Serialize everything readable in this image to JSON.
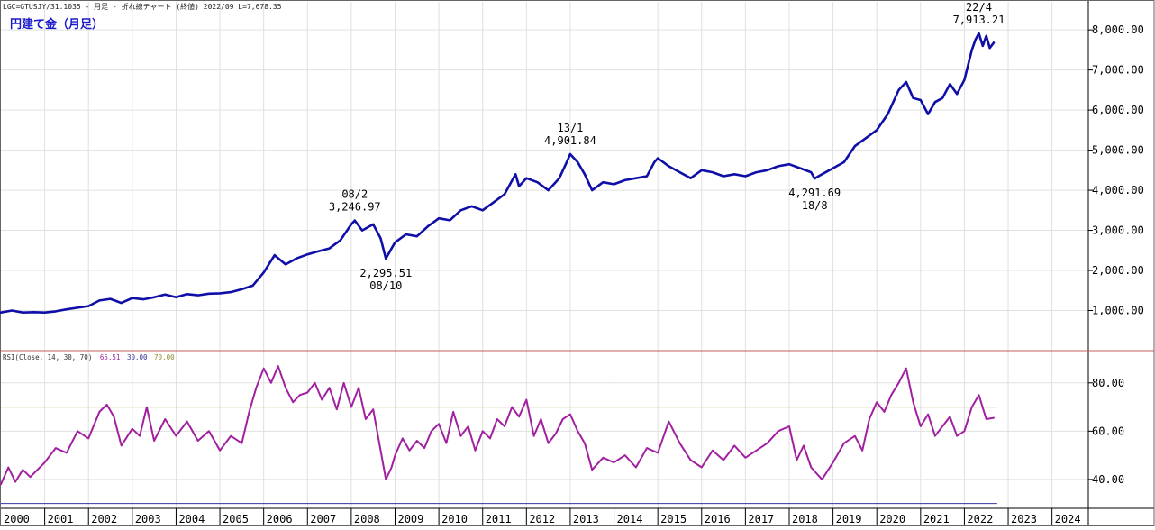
{
  "header": {
    "info_line": "LGC=GTUSJY/31.1035 - 月足 - 折れ線チャート (終値) 2022/09 L=7,678.35",
    "title": "円建て金（月足）"
  },
  "rsi_panel": {
    "label_prefix": "RSI(Close, 14, 30, 70)",
    "label_v1": "65.51",
    "label_v2": "30.00",
    "label_v3": "70.00"
  },
  "colors": {
    "price_line": "#0f0fa8",
    "rsi_line": "#a020a0",
    "level70_line": "#8c8c30",
    "level30_line": "#3535a0",
    "separator": "#c06060",
    "grid": "#e0e0e0",
    "title": "#1a1acc"
  },
  "chart_data": [
    {
      "type": "line",
      "name": "price",
      "y_tick_labels": [
        "1,000.00",
        "2,000.00",
        "3,000.00",
        "4,000.00",
        "5,000.00",
        "6,000.00",
        "7,000.00",
        "8,000.00"
      ],
      "y_ticks": [
        1000,
        2000,
        3000,
        4000,
        5000,
        6000,
        7000,
        8000
      ],
      "ylim": [
        0,
        8700
      ],
      "x_axis_labels": [
        "2000",
        "2001",
        "2002",
        "2003",
        "2004",
        "2005",
        "2006",
        "2007",
        "2008",
        "2009",
        "2010",
        "2011",
        "2012",
        "2013",
        "2014",
        "2015",
        "2016",
        "2017",
        "2018",
        "2019",
        "2020",
        "2021",
        "2022",
        "2023",
        "2024"
      ],
      "xlim": [
        2000.0,
        2024.83
      ],
      "points": [
        [
          2000.0,
          950
        ],
        [
          2000.25,
          1000
        ],
        [
          2000.5,
          950
        ],
        [
          2000.75,
          960
        ],
        [
          2001.0,
          950
        ],
        [
          2001.25,
          980
        ],
        [
          2001.5,
          1030
        ],
        [
          2001.75,
          1070
        ],
        [
          2002.0,
          1110
        ],
        [
          2002.25,
          1250
        ],
        [
          2002.5,
          1290
        ],
        [
          2002.75,
          1190
        ],
        [
          2003.0,
          1310
        ],
        [
          2003.25,
          1280
        ],
        [
          2003.5,
          1330
        ],
        [
          2003.75,
          1400
        ],
        [
          2004.0,
          1330
        ],
        [
          2004.25,
          1410
        ],
        [
          2004.5,
          1380
        ],
        [
          2004.75,
          1420
        ],
        [
          2005.0,
          1430
        ],
        [
          2005.25,
          1460
        ],
        [
          2005.5,
          1530
        ],
        [
          2005.75,
          1620
        ],
        [
          2006.0,
          1950
        ],
        [
          2006.25,
          2380
        ],
        [
          2006.5,
          2150
        ],
        [
          2006.75,
          2300
        ],
        [
          2007.0,
          2400
        ],
        [
          2007.25,
          2480
        ],
        [
          2007.5,
          2550
        ],
        [
          2007.75,
          2750
        ],
        [
          2008.0,
          3150
        ],
        [
          2008.08,
          3246.97
        ],
        [
          2008.25,
          3000
        ],
        [
          2008.5,
          3150
        ],
        [
          2008.67,
          2800
        ],
        [
          2008.79,
          2295.51
        ],
        [
          2008.92,
          2550
        ],
        [
          2009.0,
          2700
        ],
        [
          2009.25,
          2900
        ],
        [
          2009.5,
          2850
        ],
        [
          2009.75,
          3100
        ],
        [
          2010.0,
          3300
        ],
        [
          2010.25,
          3250
        ],
        [
          2010.5,
          3500
        ],
        [
          2010.75,
          3600
        ],
        [
          2011.0,
          3500
        ],
        [
          2011.25,
          3700
        ],
        [
          2011.5,
          3900
        ],
        [
          2011.75,
          4400
        ],
        [
          2011.83,
          4100
        ],
        [
          2012.0,
          4300
        ],
        [
          2012.25,
          4200
        ],
        [
          2012.5,
          4000
        ],
        [
          2012.75,
          4300
        ],
        [
          2012.92,
          4700
        ],
        [
          2013.0,
          4901.84
        ],
        [
          2013.17,
          4700
        ],
        [
          2013.33,
          4400
        ],
        [
          2013.5,
          4000
        ],
        [
          2013.75,
          4200
        ],
        [
          2014.0,
          4150
        ],
        [
          2014.25,
          4250
        ],
        [
          2014.5,
          4300
        ],
        [
          2014.75,
          4350
        ],
        [
          2014.92,
          4700
        ],
        [
          2015.0,
          4800
        ],
        [
          2015.25,
          4600
        ],
        [
          2015.5,
          4450
        ],
        [
          2015.75,
          4300
        ],
        [
          2016.0,
          4500
        ],
        [
          2016.25,
          4450
        ],
        [
          2016.5,
          4350
        ],
        [
          2016.75,
          4400
        ],
        [
          2017.0,
          4350
        ],
        [
          2017.25,
          4450
        ],
        [
          2017.5,
          4500
        ],
        [
          2017.75,
          4600
        ],
        [
          2018.0,
          4650
        ],
        [
          2018.25,
          4550
        ],
        [
          2018.5,
          4450
        ],
        [
          2018.58,
          4291.69
        ],
        [
          2018.75,
          4400
        ],
        [
          2019.0,
          4550
        ],
        [
          2019.25,
          4700
        ],
        [
          2019.5,
          5100
        ],
        [
          2019.75,
          5300
        ],
        [
          2020.0,
          5500
        ],
        [
          2020.25,
          5900
        ],
        [
          2020.5,
          6500
        ],
        [
          2020.67,
          6700
        ],
        [
          2020.83,
          6300
        ],
        [
          2021.0,
          6250
        ],
        [
          2021.17,
          5900
        ],
        [
          2021.33,
          6200
        ],
        [
          2021.5,
          6300
        ],
        [
          2021.67,
          6650
        ],
        [
          2021.83,
          6400
        ],
        [
          2022.0,
          6750
        ],
        [
          2022.17,
          7500
        ],
        [
          2022.25,
          7750
        ],
        [
          2022.33,
          7913.21
        ],
        [
          2022.42,
          7600
        ],
        [
          2022.5,
          7850
        ],
        [
          2022.58,
          7550
        ],
        [
          2022.67,
          7678.35
        ]
      ],
      "annotations": [
        {
          "date": "22/4",
          "value": "7,913.21",
          "x": 2022.33,
          "y": 7913.21,
          "pos": "above"
        },
        {
          "date": "13/1",
          "value": "4,901.84",
          "x": 2013.0,
          "y": 4901.84,
          "pos": "above"
        },
        {
          "date": "08/2",
          "value": "3,246.97",
          "x": 2008.08,
          "y": 3246.97,
          "pos": "above"
        },
        {
          "date": "08/10",
          "value": "2,295.51",
          "x": 2008.79,
          "y": 2295.51,
          "pos": "below"
        },
        {
          "date": "18/8",
          "value": "4,291.69",
          "x": 2018.58,
          "y": 4291.69,
          "pos": "below"
        }
      ],
      "grid": true
    },
    {
      "type": "line",
      "name": "rsi",
      "y_tick_labels": [
        "40.00",
        "60.00",
        "80.00"
      ],
      "y_ticks": [
        40,
        60,
        80
      ],
      "ylim": [
        28,
        93
      ],
      "levels": [
        70,
        30
      ],
      "xlim": [
        2000.0,
        2024.83
      ],
      "points": [
        [
          2000.0,
          38
        ],
        [
          2000.17,
          45
        ],
        [
          2000.33,
          39
        ],
        [
          2000.5,
          44
        ],
        [
          2000.67,
          41
        ],
        [
          2001.0,
          47
        ],
        [
          2001.25,
          53
        ],
        [
          2001.5,
          51
        ],
        [
          2001.75,
          60
        ],
        [
          2002.0,
          57
        ],
        [
          2002.25,
          68
        ],
        [
          2002.42,
          71
        ],
        [
          2002.58,
          66
        ],
        [
          2002.75,
          54
        ],
        [
          2003.0,
          61
        ],
        [
          2003.17,
          58
        ],
        [
          2003.33,
          70
        ],
        [
          2003.5,
          56
        ],
        [
          2003.75,
          65
        ],
        [
          2004.0,
          58
        ],
        [
          2004.25,
          64
        ],
        [
          2004.5,
          56
        ],
        [
          2004.75,
          60
        ],
        [
          2005.0,
          52
        ],
        [
          2005.25,
          58
        ],
        [
          2005.5,
          55
        ],
        [
          2005.67,
          68
        ],
        [
          2005.83,
          78
        ],
        [
          2006.0,
          86
        ],
        [
          2006.17,
          80
        ],
        [
          2006.33,
          87
        ],
        [
          2006.5,
          78
        ],
        [
          2006.67,
          72
        ],
        [
          2006.83,
          75
        ],
        [
          2007.0,
          76
        ],
        [
          2007.17,
          80
        ],
        [
          2007.33,
          73
        ],
        [
          2007.5,
          78
        ],
        [
          2007.67,
          69
        ],
        [
          2007.83,
          80
        ],
        [
          2008.0,
          70
        ],
        [
          2008.17,
          78
        ],
        [
          2008.33,
          65
        ],
        [
          2008.5,
          69
        ],
        [
          2008.67,
          52
        ],
        [
          2008.79,
          40
        ],
        [
          2008.92,
          45
        ],
        [
          2009.0,
          50
        ],
        [
          2009.17,
          57
        ],
        [
          2009.33,
          52
        ],
        [
          2009.5,
          56
        ],
        [
          2009.67,
          53
        ],
        [
          2009.83,
          60
        ],
        [
          2010.0,
          63
        ],
        [
          2010.17,
          55
        ],
        [
          2010.33,
          68
        ],
        [
          2010.5,
          58
        ],
        [
          2010.67,
          62
        ],
        [
          2010.83,
          52
        ],
        [
          2011.0,
          60
        ],
        [
          2011.17,
          57
        ],
        [
          2011.33,
          65
        ],
        [
          2011.5,
          62
        ],
        [
          2011.67,
          70
        ],
        [
          2011.83,
          66
        ],
        [
          2012.0,
          73
        ],
        [
          2012.17,
          58
        ],
        [
          2012.33,
          65
        ],
        [
          2012.5,
          55
        ],
        [
          2012.67,
          59
        ],
        [
          2012.83,
          65
        ],
        [
          2013.0,
          67
        ],
        [
          2013.17,
          60
        ],
        [
          2013.33,
          55
        ],
        [
          2013.5,
          44
        ],
        [
          2013.75,
          49
        ],
        [
          2014.0,
          47
        ],
        [
          2014.25,
          50
        ],
        [
          2014.5,
          45
        ],
        [
          2014.75,
          53
        ],
        [
          2015.0,
          51
        ],
        [
          2015.25,
          64
        ],
        [
          2015.5,
          55
        ],
        [
          2015.75,
          48
        ],
        [
          2016.0,
          45
        ],
        [
          2016.25,
          52
        ],
        [
          2016.5,
          48
        ],
        [
          2016.75,
          54
        ],
        [
          2017.0,
          49
        ],
        [
          2017.25,
          52
        ],
        [
          2017.5,
          55
        ],
        [
          2017.75,
          60
        ],
        [
          2018.0,
          62
        ],
        [
          2018.17,
          48
        ],
        [
          2018.33,
          54
        ],
        [
          2018.5,
          45
        ],
        [
          2018.75,
          40
        ],
        [
          2019.0,
          47
        ],
        [
          2019.25,
          55
        ],
        [
          2019.5,
          58
        ],
        [
          2019.67,
          52
        ],
        [
          2019.83,
          65
        ],
        [
          2020.0,
          72
        ],
        [
          2020.17,
          68
        ],
        [
          2020.33,
          75
        ],
        [
          2020.5,
          80
        ],
        [
          2020.67,
          86
        ],
        [
          2020.83,
          72
        ],
        [
          2021.0,
          62
        ],
        [
          2021.17,
          67
        ],
        [
          2021.33,
          58
        ],
        [
          2021.5,
          62
        ],
        [
          2021.67,
          66
        ],
        [
          2021.83,
          58
        ],
        [
          2022.0,
          60
        ],
        [
          2022.17,
          70
        ],
        [
          2022.33,
          75
        ],
        [
          2022.5,
          65
        ],
        [
          2022.67,
          65.51
        ]
      ],
      "grid": true
    }
  ]
}
